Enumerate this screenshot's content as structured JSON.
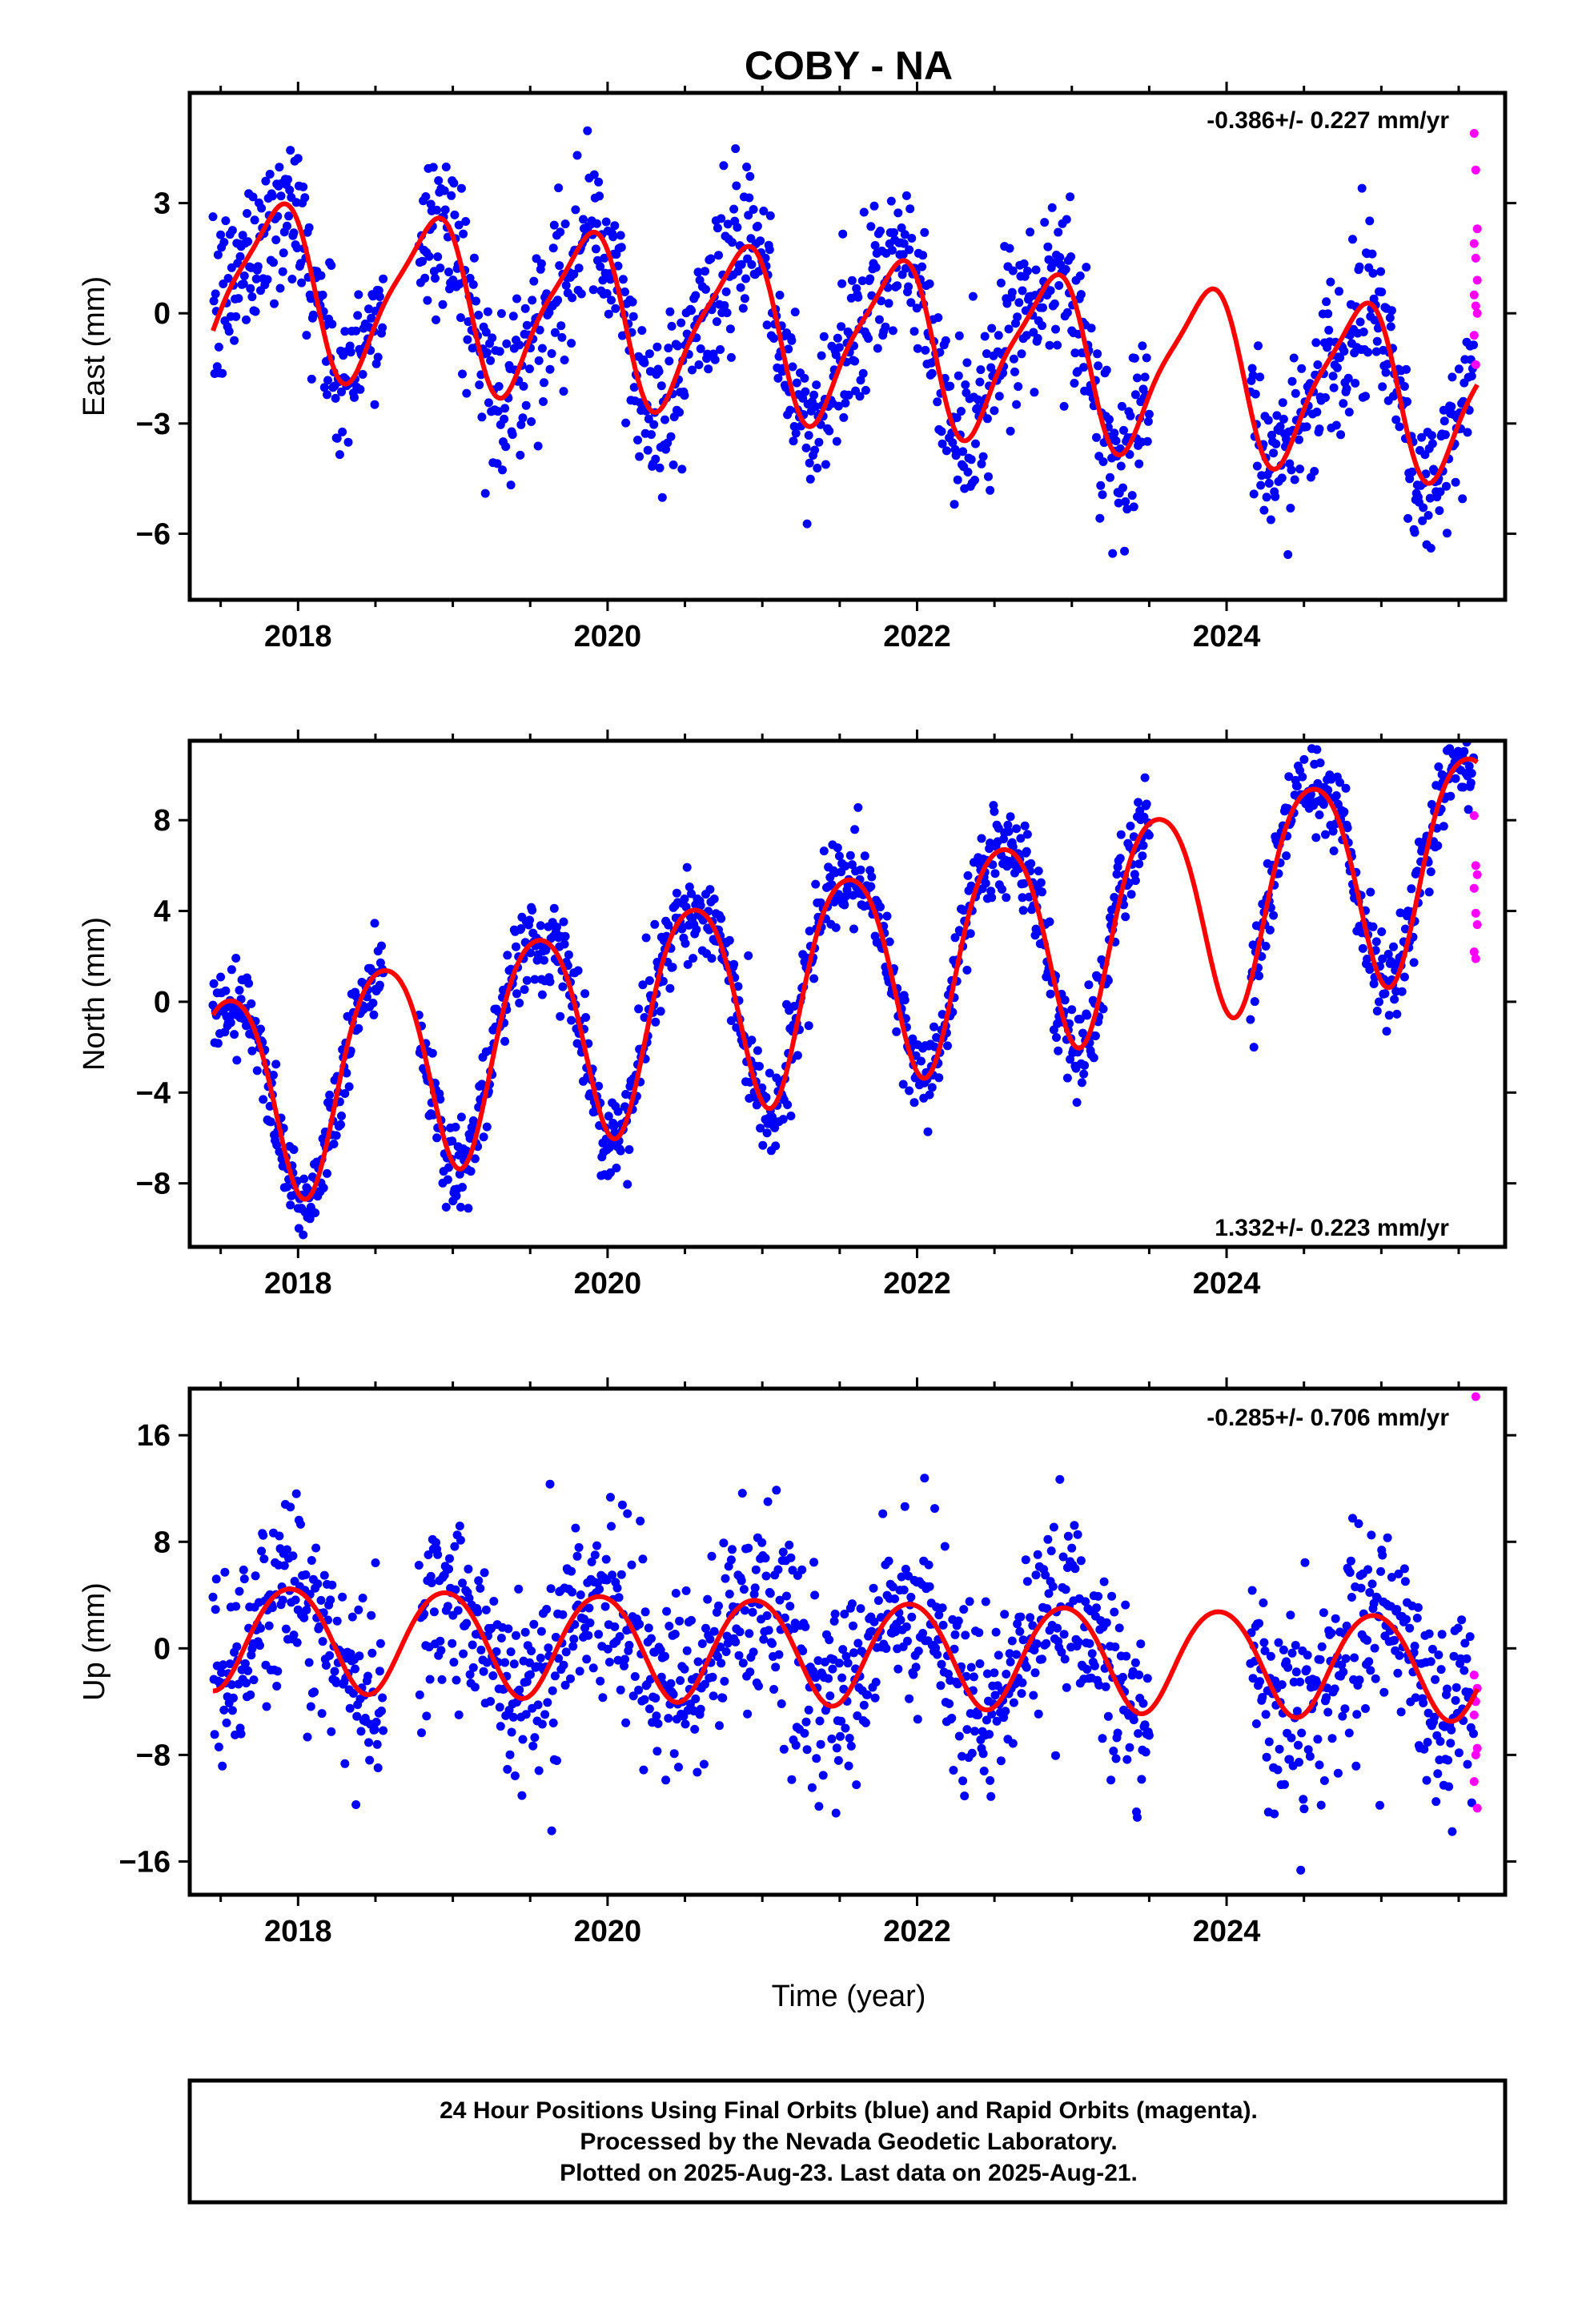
{
  "title": "COBY - NA",
  "xlabel": "Time (year)",
  "footer": {
    "line1": "24 Hour Positions Using Final Orbits (blue) and Rapid Orbits (magenta).",
    "line2": "Processed by the Nevada Geodetic Laboratory.",
    "line3": "Plotted on 2025-Aug-23. Last data on 2025-Aug-21."
  },
  "colors": {
    "final": "#0000ff",
    "rapid": "#ff00ff",
    "model": "#ff0000",
    "frame": "#000000"
  },
  "chart_data": [
    {
      "type": "scatter",
      "ylabel": "East (mm)",
      "rate": "-0.386+/- 0.227 mm/yr",
      "xlim": [
        2017.3,
        2025.8
      ],
      "ylim": [
        -7.8,
        6.0
      ],
      "yticks": [
        -6,
        -3,
        0,
        3
      ],
      "xticks": [
        2018,
        2020,
        2022,
        2024
      ],
      "grid": false,
      "model": {
        "offset": 0.9,
        "trend": -0.386,
        "annual_amp": 2.2,
        "annual_peak": 0.85,
        "semi_amp": 0.5,
        "semi_peak": 0.0,
        "epoch": 2017.45
      },
      "final": {
        "start": 2017.45,
        "end": 2025.6,
        "gaps": [
          [
            2018.55,
            2018.78
          ],
          [
            2023.5,
            2024.15
          ]
        ],
        "scatter": 1.1
      },
      "rapid_points": [
        [
          2025.6,
          4.9
        ],
        [
          2025.61,
          3.9
        ],
        [
          2025.62,
          2.3
        ],
        [
          2025.6,
          1.9
        ],
        [
          2025.61,
          1.5
        ],
        [
          2025.62,
          0.9
        ],
        [
          2025.6,
          0.5
        ],
        [
          2025.61,
          0.2
        ],
        [
          2025.62,
          0.0
        ],
        [
          2025.6,
          -0.6
        ],
        [
          2025.61,
          -1.4
        ]
      ]
    },
    {
      "type": "scatter",
      "ylabel": "North (mm)",
      "rate": "1.332+/- 0.223 mm/yr",
      "xlim": [
        2017.3,
        2025.8
      ],
      "ylim": [
        -10.8,
        11.5
      ],
      "yticks": [
        -8,
        -4,
        0,
        4,
        8
      ],
      "xticks": [
        2018,
        2020,
        2022,
        2024
      ],
      "grid": false,
      "model": {
        "offset": -4.2,
        "trend": 1.332,
        "annual_amp": 4.7,
        "annual_peak": 0.55,
        "semi_amp": 0.6,
        "semi_peak": 0.3,
        "epoch": 2017.45
      },
      "final": {
        "start": 2017.45,
        "end": 2025.6,
        "gaps": [
          [
            2018.55,
            2018.78
          ],
          [
            2023.5,
            2024.15
          ]
        ],
        "scatter": 1.0
      },
      "rapid_points": [
        [
          2025.6,
          8.2
        ],
        [
          2025.61,
          6.0
        ],
        [
          2025.62,
          5.6
        ],
        [
          2025.6,
          5.0
        ],
        [
          2025.61,
          3.9
        ],
        [
          2025.62,
          3.4
        ],
        [
          2025.6,
          2.2
        ],
        [
          2025.61,
          1.9
        ]
      ]
    },
    {
      "type": "scatter",
      "ylabel": "Up (mm)",
      "rate": "-0.285+/- 0.706 mm/yr",
      "xlim": [
        2017.3,
        2025.8
      ],
      "ylim": [
        -18.5,
        19.5
      ],
      "yticks": [
        -16,
        -8,
        0,
        8,
        16
      ],
      "xticks": [
        2018,
        2020,
        2022,
        2024
      ],
      "grid": false,
      "model": {
        "offset": 1.0,
        "trend": -0.285,
        "annual_amp": 3.9,
        "annual_peak": 0.95,
        "semi_amp": 0.3,
        "semi_peak": 0.2,
        "epoch": 2017.45
      },
      "final": {
        "start": 2017.45,
        "end": 2025.6,
        "gaps": [
          [
            2018.55,
            2018.78
          ],
          [
            2023.5,
            2024.15
          ]
        ],
        "scatter": 3.6
      },
      "rapid_points": [
        [
          2025.61,
          18.9
        ],
        [
          2025.6,
          -2.0
        ],
        [
          2025.62,
          -3.0
        ],
        [
          2025.61,
          -4.0
        ],
        [
          2025.6,
          -5.0
        ],
        [
          2025.62,
          -7.5
        ],
        [
          2025.61,
          -8.0
        ],
        [
          2025.6,
          -10.0
        ],
        [
          2025.62,
          -12.0
        ]
      ]
    }
  ]
}
